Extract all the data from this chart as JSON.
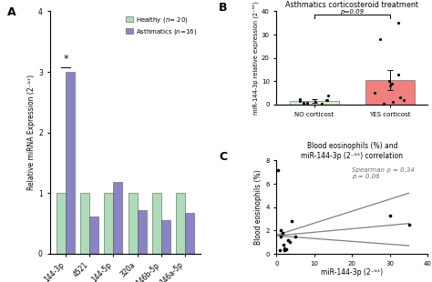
{
  "panel_A": {
    "categories": [
      "144-3p",
      "4521",
      "144-5p",
      "320a",
      "146b-5p",
      "146a-5p"
    ],
    "healthy": [
      1.0,
      1.0,
      1.0,
      1.0,
      1.0,
      1.0
    ],
    "asthma": [
      3.0,
      0.62,
      1.18,
      0.72,
      0.55,
      0.68
    ],
    "healthy_color": "#aedcbb",
    "asthma_color": "#8b84c4",
    "ylabel": "Relative miRNA Expression (2⁻ᴵᶜᵗ)",
    "ylim": [
      0,
      4
    ],
    "yticks": [
      0,
      1,
      2,
      3,
      4
    ],
    "legend_healthy": "Healthy (n= 20)",
    "legend_asthma": "Asthmatics (n=16)",
    "label": "A"
  },
  "panel_B": {
    "title": "Asthmatics corticosteroid treatment",
    "ylabel": "miR-144-3p relative expression (2⁻ᴵᶜᵗ)",
    "categories": [
      "NO corticost",
      "YES corticost"
    ],
    "no_bar_color": "#d4edd4",
    "yes_bar_color": "#f08080",
    "no_mean": 1.5,
    "yes_mean": 10.5,
    "no_err": 0.7,
    "yes_err": 4.2,
    "no_points_x": [
      0.82,
      0.88,
      0.92,
      0.95,
      0.98,
      1.02,
      1.05,
      1.08,
      1.12,
      1.18
    ],
    "no_points_y": [
      0.3,
      0.5,
      0.8,
      1.0,
      1.5,
      1.8,
      2.0,
      2.2,
      4.0,
      0.6
    ],
    "yes_points_x": [
      1.82,
      1.88,
      1.92,
      1.95,
      1.98,
      2.02,
      2.05,
      2.08,
      2.12,
      2.18,
      2.22
    ],
    "yes_points_y": [
      0.5,
      1.0,
      2.0,
      3.0,
      5.0,
      8.0,
      9.0,
      10.0,
      13.0,
      28.0,
      35.0
    ],
    "ylim": [
      0,
      40
    ],
    "yticks": [
      0,
      10,
      20,
      30,
      40
    ],
    "pvalue": "p=0.09",
    "label": "B"
  },
  "panel_C": {
    "title": "Blood eosinophils (%) and\nmiR-144-3p (2⁻ᴵᶜᵗ) correlation",
    "xlabel": "miR-144-3p (2⁻ᴵᶜᵗ)",
    "ylabel": "Blood eosinophils (%)",
    "points_x": [
      0.5,
      0.8,
      1.0,
      1.2,
      1.5,
      1.8,
      2.0,
      2.2,
      2.5,
      3.0,
      3.5,
      4.0,
      5.0,
      30.0,
      35.0
    ],
    "points_y": [
      7.2,
      0.3,
      2.0,
      1.5,
      1.8,
      0.8,
      0.5,
      0.3,
      0.4,
      1.2,
      1.0,
      2.8,
      1.5,
      3.3,
      2.5
    ],
    "xlim": [
      0,
      40
    ],
    "ylim": [
      0,
      8
    ],
    "xticks": [
      0,
      10,
      20,
      30,
      40
    ],
    "yticks": [
      0,
      2,
      4,
      6,
      8
    ],
    "spearman_text": "Spearman ρ = 0.34\np = 0.06",
    "line1_x": [
      0,
      35
    ],
    "line1_y": [
      1.6,
      5.2
    ],
    "line2_x": [
      0,
      35
    ],
    "line2_y": [
      1.55,
      2.6
    ],
    "line3_x": [
      0,
      35
    ],
    "line3_y": [
      1.55,
      0.7
    ],
    "label": "C"
  }
}
